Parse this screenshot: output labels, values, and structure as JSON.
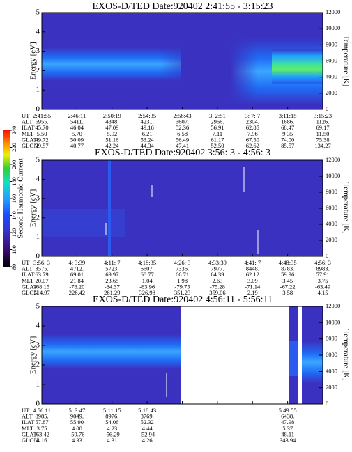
{
  "colorbar": {
    "label": "Second Harmonic Current",
    "lim": [
      80,
      240
    ],
    "ticks": [
      80,
      100,
      120,
      140,
      160,
      180,
      200,
      220,
      240
    ]
  },
  "panels": [
    {
      "title": "EXOS-D/TED   Date:920402  2:41:55 - 3:15:23",
      "ylabel": "Energy [eV]",
      "y2label": "Temperature [K]",
      "ylim": [
        0,
        5
      ],
      "yticks": [
        0,
        1,
        2,
        3,
        4,
        5
      ],
      "y2lim": [
        0,
        12000
      ],
      "y2ticks": [
        0,
        2000,
        4000,
        6000,
        8000,
        10000,
        12000
      ],
      "table": {
        "row_labels": [
          "UT",
          "ALT",
          "ILAT",
          "MLT",
          "GLAT",
          "GLON"
        ],
        "rows": [
          [
            "2:41:55",
            "2:46:11",
            "2:50:19",
            "2:54:35",
            "2:58:43",
            "3: 2:51",
            "3: 7: 7",
            "3:11:15",
            "3:15:23"
          ],
          [
            "5955.",
            "5411.",
            "4848.",
            "4231.",
            "3607.",
            "2966.",
            "2304.",
            "1686.",
            "1126."
          ],
          [
            "45.70",
            "46.04",
            "47.09",
            "49.16",
            "52.36",
            "56.91",
            "62.85",
            "68.47",
            "69.17"
          ],
          [
            "5.50",
            "5.70",
            "5.92",
            "6.21",
            "6.58",
            "7.11",
            "7.96",
            "9.35",
            "11.50"
          ],
          [
            "49.72",
            "50.09",
            "51.16",
            "53.24",
            "56.49",
            "61.17",
            "67.50",
            "74.00",
            "75.38"
          ],
          [
            "39.57",
            "40.77",
            "42.24",
            "44.34",
            "47.41",
            "52.50",
            "62.62",
            "85.57",
            "134.27"
          ]
        ]
      }
    },
    {
      "title": "EXOS-D/TED   Date:920402  3:56: 3 - 4:56: 3",
      "ylabel": "Energy [eV]",
      "y2label": "Temperature [K]",
      "ylim": [
        0,
        5
      ],
      "yticks": [
        0,
        1,
        2,
        3,
        4,
        5
      ],
      "y2lim": [
        0,
        12000
      ],
      "y2ticks": [
        0,
        2000,
        4000,
        6000,
        8000,
        10000,
        12000
      ],
      "table": {
        "row_labels": [
          "UT",
          "ALT",
          "ILAT",
          "MLT",
          "GLAT",
          "GLON"
        ],
        "rows": [
          [
            "3:56: 3",
            "4: 3:39",
            "4:11: 7",
            "4:18:35",
            "4:26: 3",
            "4:33:39",
            "4:41: 7",
            "4:48:35",
            "4:56: 3"
          ],
          [
            "3575.",
            "4712.",
            "5723.",
            "6607.",
            "7336.",
            "7977.",
            "8448.",
            "8783.",
            "8983."
          ],
          [
            "63.79",
            "69.01",
            "69.97",
            "68.77",
            "66.71",
            "64.39",
            "62.12",
            "59.96",
            "57.91"
          ],
          [
            "20.07",
            "21.84",
            "23.65",
            "1.04",
            "1.98",
            "2.63",
            "3.09",
            "3.45",
            "3.75"
          ],
          [
            "-68.15",
            "-78.20",
            "-84.37",
            "-83.96",
            "-79.75",
            "-75.28",
            "-71.14",
            "-67.22",
            "-63.49"
          ],
          [
            "214.97",
            "226.42",
            "261.29",
            "326.98",
            "351.23",
            "359.06",
            "2.19",
            "3.58",
            "4.15"
          ]
        ]
      }
    },
    {
      "title": "EXOS-D/TED   Date:920402  4:56:11 - 5:56:11",
      "ylabel": "Energy [eV]",
      "y2label": "Temperature [K]",
      "ylim": [
        0,
        5
      ],
      "yticks": [
        0,
        1,
        2,
        3,
        4,
        5
      ],
      "y2lim": [
        0,
        12000
      ],
      "y2ticks": [
        0,
        2000,
        4000,
        6000,
        8000,
        10000,
        12000
      ],
      "table": {
        "row_labels": [
          "UT",
          "ALT",
          "ILAT",
          "MLT",
          "GLAT",
          "GLON"
        ],
        "rows": [
          [
            "4:56:11",
            "5: 3:47",
            "5:11:15",
            "5:18:43",
            null,
            null,
            null,
            "5:49:55",
            null
          ],
          [
            "8985.",
            "9049.",
            "8976.",
            "8769.",
            null,
            null,
            null,
            "6438.",
            null
          ],
          [
            "57.87",
            "55.90",
            "54.06",
            "52.32",
            null,
            null,
            null,
            "47.98",
            null
          ],
          [
            "3.75",
            "4.00",
            "4.23",
            "4.44",
            null,
            null,
            null,
            "5.37",
            null
          ],
          [
            "-63.42",
            "-59.76",
            "-56.29",
            "-52.94",
            null,
            null,
            null,
            "48.11",
            null
          ],
          [
            "4.16",
            "4.33",
            "4.31",
            "4.26",
            null,
            null,
            null,
            "343.94",
            null
          ]
        ]
      }
    }
  ]
}
